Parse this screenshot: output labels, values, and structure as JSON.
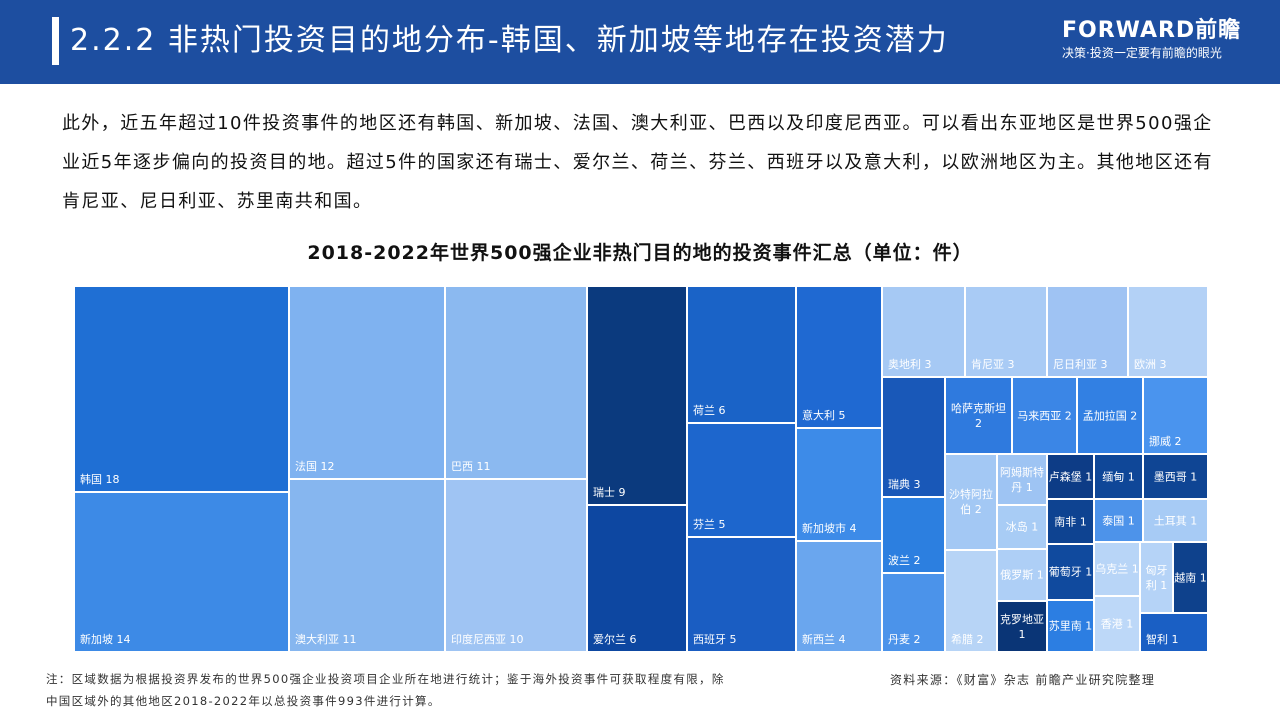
{
  "header": {
    "title": "2.2.2 非热门投资目的地分布-韩国、新加坡等地存在投资潜力",
    "logo_brand": "FORWARD前瞻",
    "logo_slogan": "决策·投资一定要有前瞻的眼光"
  },
  "intro": "此外，近五年超过10件投资事件的地区还有韩国、新加坡、法国、澳大利亚、巴西以及印度尼西亚。可以看出东亚地区是世界500强企业近5年逐步偏向的投资目的地。超过5件的国家还有瑞士、爱尔兰、荷兰、芬兰、西班牙以及意大利，以欧洲地区为主。其他地区还有肯尼亚、尼日利亚、苏里南共和国。",
  "chart_data": {
    "type": "treemap",
    "title": "2018-2022年世界500强企业非热门目的地的投资事件汇总（单位：件）",
    "items": [
      {
        "name": "韩国",
        "value": 18,
        "color": "#1f6fd4"
      },
      {
        "name": "新加坡",
        "value": 14,
        "color": "#3d8ae6"
      },
      {
        "name": "法国",
        "value": 12,
        "color": "#7fb2f0"
      },
      {
        "name": "澳大利亚",
        "value": 11,
        "color": "#86b6ef"
      },
      {
        "name": "巴西",
        "value": 11,
        "color": "#8bb9f0"
      },
      {
        "name": "印度尼西亚",
        "value": 10,
        "color": "#9fc4f3"
      },
      {
        "name": "瑞士",
        "value": 9,
        "color": "#0b3a7e"
      },
      {
        "name": "爱尔兰",
        "value": 6,
        "color": "#0d47a1"
      },
      {
        "name": "荷兰",
        "value": 6,
        "color": "#1a63c7"
      },
      {
        "name": "芬兰",
        "value": 5,
        "color": "#1d66cd"
      },
      {
        "name": "西班牙",
        "value": 5,
        "color": "#1a5dc2"
      },
      {
        "name": "意大利",
        "value": 5,
        "color": "#1f69d2"
      },
      {
        "name": "新加坡市",
        "value": 4,
        "color": "#3d8be8"
      },
      {
        "name": "新西兰",
        "value": 4,
        "color": "#6aa6ee"
      },
      {
        "name": "奥地利",
        "value": 3,
        "color": "#a6c9f4"
      },
      {
        "name": "肯尼亚",
        "value": 3,
        "color": "#a9cbf5"
      },
      {
        "name": "尼日利亚",
        "value": 3,
        "color": "#9fc3f3"
      },
      {
        "name": "欧洲",
        "value": 3,
        "color": "#b3d1f6"
      },
      {
        "name": "瑞典",
        "value": 3,
        "color": "#1958b8"
      },
      {
        "name": "波兰",
        "value": 2,
        "color": "#2c7fe0"
      },
      {
        "name": "丹麦",
        "value": 2,
        "color": "#4b93ea"
      },
      {
        "name": "哈萨克斯坦",
        "value": 2,
        "color": "#2f7ade"
      },
      {
        "name": "马来西亚",
        "value": 2,
        "color": "#3b86e6"
      },
      {
        "name": "孟加拉国",
        "value": 2,
        "color": "#3280e3"
      },
      {
        "name": "挪威",
        "value": 2,
        "color": "#4a94ee"
      },
      {
        "name": "沙特阿拉伯",
        "value": 2,
        "color": "#a3c8f4"
      },
      {
        "name": "希腊",
        "value": 2,
        "color": "#b7d4f6"
      },
      {
        "name": "阿姆斯特丹",
        "value": 1,
        "color": "#9ec4f3"
      },
      {
        "name": "冰岛",
        "value": 1,
        "color": "#a8ccf5"
      },
      {
        "name": "俄罗斯",
        "value": 1,
        "color": "#aecff6"
      },
      {
        "name": "克罗地亚",
        "value": 1,
        "color": "#0a3576"
      },
      {
        "name": "卢森堡",
        "value": 1,
        "color": "#0d3c86"
      },
      {
        "name": "南非",
        "value": 1,
        "color": "#0e4391"
      },
      {
        "name": "葡萄牙",
        "value": 1,
        "color": "#104a9e"
      },
      {
        "name": "苏里南",
        "value": 1,
        "color": "#2c7ee2"
      },
      {
        "name": "缅甸",
        "value": 1,
        "color": "#0f4798"
      },
      {
        "name": "墨西哥",
        "value": 1,
        "color": "#0f4594"
      },
      {
        "name": "泰国",
        "value": 1,
        "color": "#4d93ea"
      },
      {
        "name": "土耳其",
        "value": 1,
        "color": "#a7cbf5"
      },
      {
        "name": "乌克兰",
        "value": 1,
        "color": "#b8d5f7"
      },
      {
        "name": "香港",
        "value": 1,
        "color": "#bdd8f8"
      },
      {
        "name": "匈牙利",
        "value": 1,
        "color": "#b5d3f7"
      },
      {
        "name": "越南",
        "value": 1,
        "color": "#0e418c"
      },
      {
        "name": "智利",
        "value": 1,
        "color": "#1a5fc4"
      }
    ]
  },
  "footnote": "注：区域数据为根据投资界发布的世界500强企业投资项目企业所在地进行统计；鉴于海外投资事件可获取程度有限，除中国区域外的其他地区2018-2022年以总投资事件993件进行计算。",
  "source": "资料来源：《财富》杂志 前瞻产业研究院整理"
}
